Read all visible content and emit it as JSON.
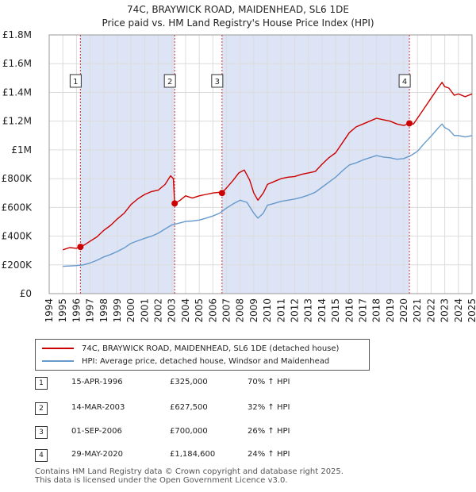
{
  "title_line1": "74C, BRAYWICK ROAD, MAIDENHEAD, SL6 1DE",
  "title_line2": "Price paid vs. HM Land Registry's House Price Index (HPI)",
  "colors": {
    "property": "#cc0000",
    "hpi": "#6699cc",
    "shade": "#dde4f5",
    "grid": "#dcdcdc"
  },
  "chart_data": {
    "type": "line",
    "title": "74C, BRAYWICK ROAD, MAIDENHEAD, SL6 1DE — Price paid vs. HM Land Registry's House Price Index (HPI)",
    "xlabel": "",
    "ylabel": "",
    "xlim": [
      1994,
      2025
    ],
    "ylim": [
      0,
      1800000
    ],
    "yticks": [
      0,
      200000,
      400000,
      600000,
      800000,
      1000000,
      1200000,
      1400000,
      1600000,
      1800000
    ],
    "ytick_labels": [
      "£0",
      "£200K",
      "£400K",
      "£600K",
      "£800K",
      "£1M",
      "£1.2M",
      "£1.4M",
      "£1.6M",
      "£1.8M"
    ],
    "xticks": [
      1994,
      1995,
      1996,
      1997,
      1998,
      1999,
      2000,
      2001,
      2002,
      2003,
      2004,
      2005,
      2006,
      2007,
      2008,
      2009,
      2010,
      2011,
      2012,
      2013,
      2014,
      2015,
      2016,
      2017,
      2018,
      2019,
      2020,
      2021,
      2022,
      2023,
      2024,
      2025
    ],
    "shaded_periods": [
      [
        1996.29,
        2003.2
      ],
      [
        2006.67,
        2020.41
      ]
    ],
    "series": [
      {
        "name": "74C, BRAYWICK ROAD, MAIDENHEAD, SL6 1DE (detached house)",
        "color": "#cc0000",
        "x": [
          1995.0,
          1995.5,
          1996.0,
          1996.29,
          1996.6,
          1997.0,
          1997.5,
          1998.0,
          1998.5,
          1999.0,
          1999.5,
          2000.0,
          2000.5,
          2001.0,
          2001.5,
          2002.0,
          2002.5,
          2002.9,
          2003.1,
          2003.2,
          2003.6,
          2004.0,
          2004.5,
          2005.0,
          2005.5,
          2006.0,
          2006.5,
          2006.67,
          2007.0,
          2007.5,
          2007.9,
          2008.3,
          2008.7,
          2009.0,
          2009.3,
          2009.7,
          2010.0,
          2010.5,
          2011.0,
          2011.5,
          2012.0,
          2012.5,
          2013.0,
          2013.5,
          2014.0,
          2014.5,
          2015.0,
          2015.5,
          2016.0,
          2016.5,
          2017.0,
          2017.5,
          2018.0,
          2018.5,
          2019.0,
          2019.5,
          2020.0,
          2020.41,
          2020.7,
          2021.0,
          2021.5,
          2022.0,
          2022.5,
          2022.8,
          2023.0,
          2023.3,
          2023.7,
          2024.0,
          2024.5,
          2025.0
        ],
        "y": [
          305000,
          320000,
          315000,
          325000,
          340000,
          365000,
          395000,
          440000,
          475000,
          520000,
          560000,
          620000,
          660000,
          690000,
          710000,
          720000,
          760000,
          820000,
          800000,
          627500,
          650000,
          680000,
          665000,
          680000,
          690000,
          700000,
          705000,
          700000,
          735000,
          790000,
          840000,
          860000,
          790000,
          700000,
          650000,
          700000,
          760000,
          780000,
          800000,
          810000,
          815000,
          830000,
          840000,
          850000,
          900000,
          945000,
          980000,
          1050000,
          1120000,
          1160000,
          1180000,
          1200000,
          1220000,
          1210000,
          1200000,
          1180000,
          1170000,
          1184600,
          1180000,
          1220000,
          1290000,
          1360000,
          1430000,
          1470000,
          1440000,
          1430000,
          1380000,
          1390000,
          1370000,
          1390000
        ]
      },
      {
        "name": "HPI: Average price, detached house, Windsor and Maidenhead",
        "color": "#6699cc",
        "x": [
          1995.0,
          1995.5,
          1996.0,
          1996.5,
          1997.0,
          1997.5,
          1998.0,
          1998.5,
          1999.0,
          1999.5,
          2000.0,
          2000.5,
          2001.0,
          2001.5,
          2002.0,
          2002.5,
          2003.0,
          2003.5,
          2004.0,
          2004.5,
          2005.0,
          2005.5,
          2006.0,
          2006.5,
          2007.0,
          2007.5,
          2008.0,
          2008.5,
          2009.0,
          2009.3,
          2009.7,
          2010.0,
          2010.5,
          2011.0,
          2011.5,
          2012.0,
          2012.5,
          2013.0,
          2013.5,
          2014.0,
          2014.5,
          2015.0,
          2015.5,
          2016.0,
          2016.5,
          2017.0,
          2017.5,
          2018.0,
          2018.5,
          2019.0,
          2019.5,
          2020.0,
          2020.5,
          2021.0,
          2021.5,
          2022.0,
          2022.5,
          2022.8,
          2023.0,
          2023.3,
          2023.7,
          2024.0,
          2024.5,
          2025.0
        ],
        "y": [
          190000,
          192000,
          195000,
          200000,
          213000,
          232000,
          255000,
          272000,
          293000,
          318000,
          350000,
          368000,
          385000,
          400000,
          420000,
          450000,
          478000,
          490000,
          502000,
          505000,
          512000,
          525000,
          540000,
          560000,
          595000,
          625000,
          650000,
          635000,
          560000,
          525000,
          560000,
          615000,
          628000,
          642000,
          650000,
          658000,
          670000,
          685000,
          705000,
          740000,
          775000,
          810000,
          855000,
          895000,
          910000,
          930000,
          945000,
          960000,
          950000,
          945000,
          935000,
          940000,
          960000,
          990000,
          1045000,
          1095000,
          1150000,
          1180000,
          1155000,
          1140000,
          1100000,
          1100000,
          1090000,
          1100000
        ]
      }
    ],
    "sales": [
      {
        "num": "1",
        "date": "15-APR-1996",
        "price": "£325,000",
        "hpi": "70% ↑ HPI",
        "x": 1996.29,
        "y": 325000
      },
      {
        "num": "2",
        "date": "14-MAR-2003",
        "price": "£627,500",
        "hpi": "32% ↑ HPI",
        "x": 2003.2,
        "y": 627500
      },
      {
        "num": "3",
        "date": "01-SEP-2006",
        "price": "£700,000",
        "hpi": "26% ↑ HPI",
        "x": 2006.67,
        "y": 700000
      },
      {
        "num": "4",
        "date": "29-MAY-2020",
        "price": "£1,184,600",
        "hpi": "24% ↑ HPI",
        "x": 2020.41,
        "y": 1184600
      }
    ],
    "marker_label_y": 1480000
  },
  "legend": {
    "property_label": "74C, BRAYWICK ROAD, MAIDENHEAD, SL6 1DE (detached house)",
    "hpi_label": "HPI: Average price, detached house, Windsor and Maidenhead"
  },
  "footer": {
    "line1": "Contains HM Land Registry data © Crown copyright and database right 2025.",
    "line2": "This data is licensed under the Open Government Licence v3.0."
  }
}
